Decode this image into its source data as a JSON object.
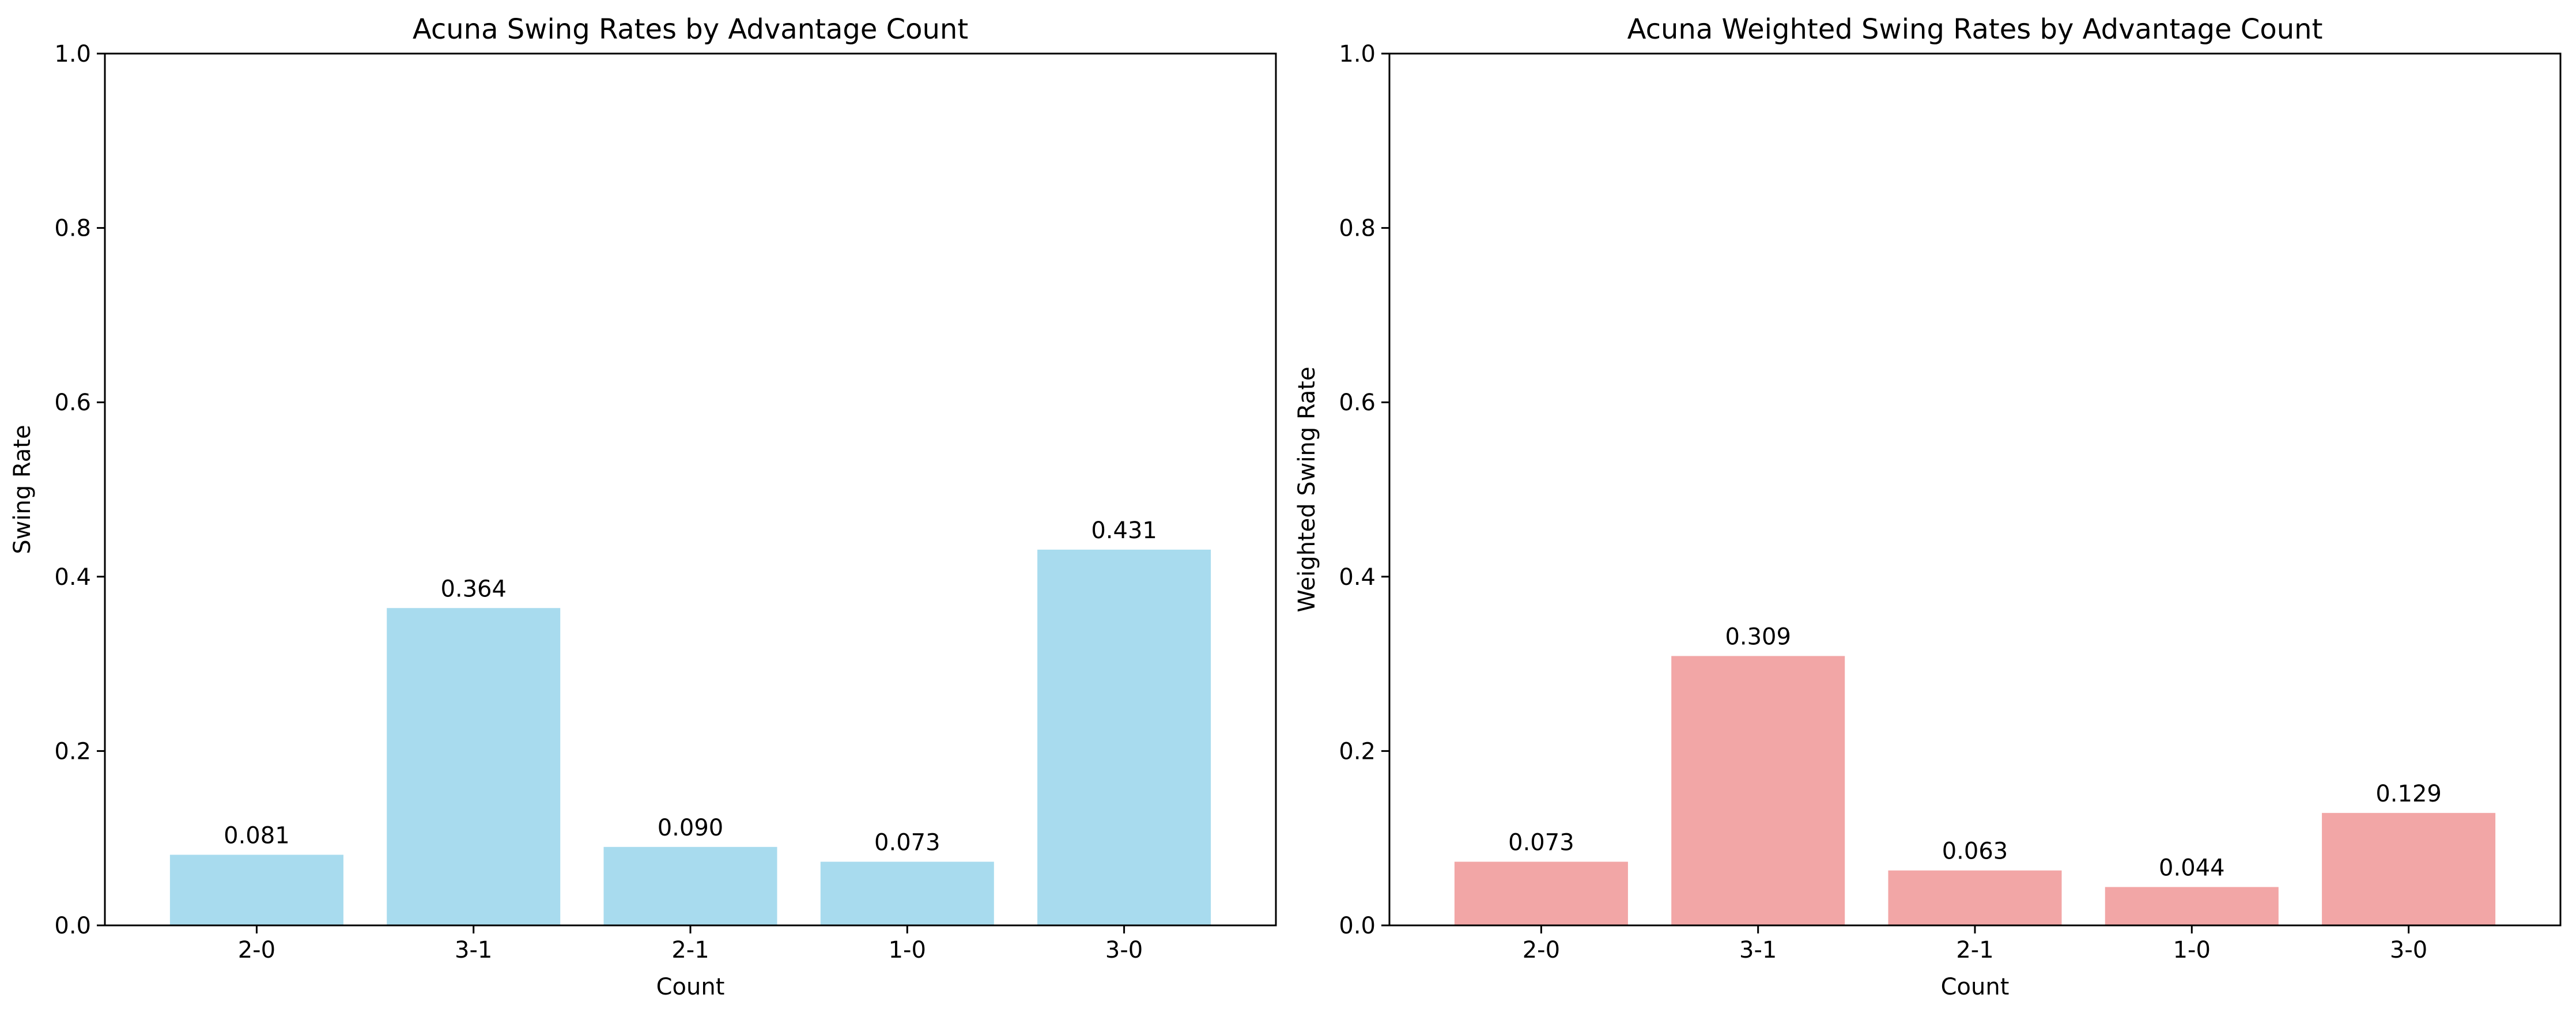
{
  "chart_data": [
    {
      "type": "bar",
      "title": "Acuna Swing Rates by Advantage Count",
      "xlabel": "Count",
      "ylabel": "Swing Rate",
      "categories": [
        "2-0",
        "3-1",
        "2-1",
        "1-0",
        "3-0"
      ],
      "values": [
        0.081,
        0.364,
        0.09,
        0.073,
        0.431
      ],
      "value_labels": [
        "0.081",
        "0.364",
        "0.090",
        "0.073",
        "0.431"
      ],
      "ylim": [
        0,
        1.0
      ],
      "yticks": [
        0.0,
        0.2,
        0.4,
        0.6,
        0.8,
        1.0
      ],
      "ytick_labels": [
        "0.0",
        "0.2",
        "0.4",
        "0.6",
        "0.8",
        "1.0"
      ],
      "bar_color": "#a8dbee",
      "grid": false
    },
    {
      "type": "bar",
      "title": "Acuna Weighted Swing Rates by Advantage Count",
      "xlabel": "Count",
      "ylabel": "Weighted Swing Rate",
      "categories": [
        "2-0",
        "3-1",
        "2-1",
        "1-0",
        "3-0"
      ],
      "values": [
        0.073,
        0.309,
        0.063,
        0.044,
        0.129
      ],
      "value_labels": [
        "0.073",
        "0.309",
        "0.063",
        "0.044",
        "0.129"
      ],
      "ylim": [
        0,
        1.0
      ],
      "yticks": [
        0.0,
        0.2,
        0.4,
        0.6,
        0.8,
        1.0
      ],
      "ytick_labels": [
        "0.0",
        "0.2",
        "0.4",
        "0.6",
        "0.8",
        "1.0"
      ],
      "bar_color": "#f2a6a6",
      "grid": false
    }
  ]
}
